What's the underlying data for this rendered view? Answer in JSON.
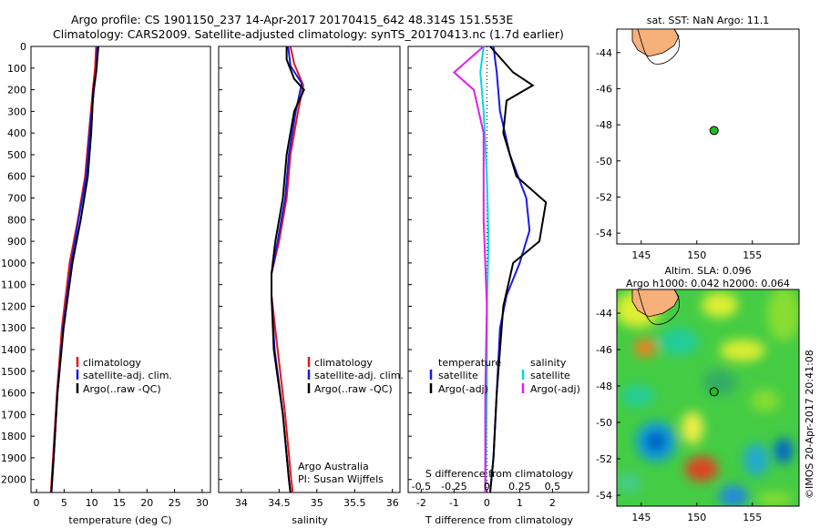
{
  "header": {
    "line1": "Argo profile: CS 1901150_237 14-Apr-2017 20170415_642 48.314S 151.553E",
    "line2": "Climatology: CARS2009. Satellite-adjusted climatology: synTS_20170413.nc (1.7d earlier)"
  },
  "colors": {
    "red": "#e8141c",
    "blue": "#1a1ae6",
    "black": "#000000",
    "cyan": "#00d8e0",
    "magenta": "#e01ee8",
    "land": "#f6b07a",
    "dot": "#22bb22"
  },
  "depth_axis": {
    "ticks": [
      0,
      100,
      200,
      300,
      400,
      500,
      600,
      700,
      800,
      900,
      1000,
      1100,
      1200,
      1300,
      1400,
      1500,
      1600,
      1700,
      1800,
      1900,
      2000
    ],
    "range": [
      0,
      2060
    ]
  },
  "chart_data": [
    {
      "type": "line",
      "id": "temperature",
      "xlabel": "temperature (deg C)",
      "ylabel": "depth",
      "xlim": [
        -1,
        31.5
      ],
      "xticks": [
        "0",
        "5",
        "10",
        "15",
        "20",
        "25",
        "30"
      ],
      "xtick_values": [
        0,
        5,
        10,
        15,
        20,
        25,
        30
      ],
      "legend": [
        "climatology",
        "satellite-adj. clim.",
        "Argo(..raw -QC)"
      ],
      "series": [
        {
          "name": "climatology",
          "color": "red",
          "points": [
            [
              10.8,
              0
            ],
            [
              10.6,
              100
            ],
            [
              10.2,
              200
            ],
            [
              9.5,
              400
            ],
            [
              8.8,
              600
            ],
            [
              7.5,
              800
            ],
            [
              6.0,
              1000
            ],
            [
              4.6,
              1300
            ],
            [
              3.7,
              1600
            ],
            [
              3.0,
              1900
            ],
            [
              2.6,
              2060
            ]
          ]
        },
        {
          "name": "satellite-adj. clim.",
          "color": "blue",
          "points": [
            [
              11.0,
              0
            ],
            [
              10.9,
              100
            ],
            [
              10.4,
              200
            ],
            [
              9.6,
              400
            ],
            [
              9.0,
              600
            ],
            [
              7.6,
              800
            ],
            [
              6.3,
              1000
            ],
            [
              4.8,
              1300
            ],
            [
              3.8,
              1600
            ],
            [
              3.1,
              1900
            ],
            [
              2.7,
              2060
            ]
          ]
        },
        {
          "name": "Argo(..raw -QC)",
          "color": "black",
          "points": [
            [
              11.2,
              0
            ],
            [
              10.8,
              120
            ],
            [
              10.3,
              200
            ],
            [
              9.9,
              400
            ],
            [
              9.3,
              600
            ],
            [
              8.0,
              800
            ],
            [
              6.5,
              1000
            ],
            [
              4.9,
              1300
            ],
            [
              3.8,
              1600
            ],
            [
              3.1,
              1900
            ],
            [
              2.7,
              2060
            ]
          ]
        }
      ]
    },
    {
      "type": "line",
      "id": "salinity",
      "xlabel": "salinity",
      "xlim": [
        33.7,
        36.1
      ],
      "xticks": [
        "34",
        "34.5",
        "35",
        "35.5",
        "36"
      ],
      "xtick_values": [
        34,
        34.5,
        35,
        35.5,
        36
      ],
      "legend": [
        "climatology",
        "satellite-adj. clim.",
        "Argo(..raw -QC)"
      ],
      "note": [
        "Argo Australia",
        "PI: Susan Wijffels"
      ],
      "series": [
        {
          "name": "climatology",
          "color": "red",
          "points": [
            [
              34.65,
              0
            ],
            [
              34.7,
              80
            ],
            [
              34.82,
              180
            ],
            [
              34.75,
              300
            ],
            [
              34.65,
              500
            ],
            [
              34.6,
              700
            ],
            [
              34.5,
              900
            ],
            [
              34.4,
              1050
            ],
            [
              34.4,
              1150
            ],
            [
              34.48,
              1400
            ],
            [
              34.58,
              1700
            ],
            [
              34.66,
              2000
            ],
            [
              34.68,
              2060
            ]
          ]
        },
        {
          "name": "satellite-adj. clim.",
          "color": "blue",
          "points": [
            [
              34.62,
              0
            ],
            [
              34.65,
              90
            ],
            [
              34.8,
              170
            ],
            [
              34.72,
              300
            ],
            [
              34.63,
              500
            ],
            [
              34.58,
              700
            ],
            [
              34.48,
              900
            ],
            [
              34.4,
              1050
            ],
            [
              34.4,
              1150
            ],
            [
              34.44,
              1400
            ],
            [
              34.55,
              1700
            ],
            [
              34.63,
              2000
            ],
            [
              34.65,
              2060
            ]
          ]
        },
        {
          "name": "Argo(..raw -QC)",
          "color": "black",
          "points": [
            [
              34.6,
              0
            ],
            [
              34.6,
              60
            ],
            [
              34.7,
              150
            ],
            [
              34.83,
              200
            ],
            [
              34.7,
              300
            ],
            [
              34.6,
              500
            ],
            [
              34.55,
              700
            ],
            [
              34.45,
              900
            ],
            [
              34.4,
              1050
            ],
            [
              34.4,
              1150
            ],
            [
              34.43,
              1400
            ],
            [
              34.55,
              1700
            ],
            [
              34.63,
              2000
            ],
            [
              34.65,
              2060
            ]
          ]
        }
      ]
    },
    {
      "type": "line",
      "id": "differences",
      "xlabel": "T difference from climatology",
      "xlabel_top": "S difference from climatology",
      "xlim": [
        -2.4,
        3.1
      ],
      "xticks": [
        "-2",
        "-1",
        "0",
        "1",
        "2"
      ],
      "xtick_values": [
        -2,
        -1,
        0,
        1,
        2
      ],
      "sticks": [
        "-0.5",
        "-0.25",
        "0",
        "0.25",
        "0.5"
      ],
      "legend_t": [
        "temperature",
        "satellite",
        "Argo(-adj)"
      ],
      "legend_s": [
        "salinity",
        "satellite",
        "Argo(-adj)"
      ],
      "series": [
        {
          "name": "T satellite",
          "color": "blue",
          "points": [
            [
              0.2,
              0
            ],
            [
              0.3,
              120
            ],
            [
              0.4,
              300
            ],
            [
              0.7,
              500
            ],
            [
              1.2,
              700
            ],
            [
              1.3,
              850
            ],
            [
              1.0,
              1000
            ],
            [
              0.6,
              1150
            ],
            [
              0.4,
              1300
            ],
            [
              0.3,
              1600
            ],
            [
              0.2,
              1900
            ],
            [
              0.1,
              2060
            ]
          ]
        },
        {
          "name": "T Argo(-adj)",
          "color": "black",
          "points": [
            [
              0.1,
              0
            ],
            [
              0.8,
              120
            ],
            [
              1.4,
              180
            ],
            [
              0.6,
              250
            ],
            [
              0.5,
              400
            ],
            [
              0.9,
              600
            ],
            [
              1.8,
              720
            ],
            [
              1.6,
              900
            ],
            [
              0.8,
              1000
            ],
            [
              0.5,
              1200
            ],
            [
              0.3,
              1600
            ],
            [
              0.2,
              1900
            ],
            [
              0.1,
              2060
            ]
          ]
        },
        {
          "name": "S satellite",
          "color": "cyan",
          "points": [
            [
              -0.1,
              0
            ],
            [
              -0.2,
              120
            ],
            [
              -0.1,
              300
            ],
            [
              0.0,
              600
            ],
            [
              0.05,
              900
            ],
            [
              0.0,
              1200
            ],
            [
              0.0,
              1600
            ],
            [
              -0.05,
              2060
            ]
          ]
        },
        {
          "name": "S Argo(-adj)",
          "color": "magenta",
          "points": [
            [
              -0.1,
              0
            ],
            [
              -1.0,
              120
            ],
            [
              -0.4,
              200
            ],
            [
              -0.1,
              400
            ],
            [
              -0.1,
              800
            ],
            [
              0.0,
              1200
            ],
            [
              -0.05,
              1600
            ],
            [
              -0.05,
              2060
            ]
          ]
        }
      ]
    }
  ],
  "map_sst": {
    "title": "sat. SST: NaN Argo: 11.1",
    "xticks": [
      "145",
      "150",
      "155"
    ],
    "xtick_values": [
      145,
      150,
      155
    ],
    "yticks": [
      "-44",
      "-46",
      "-48",
      "-50",
      "-52",
      "-54"
    ],
    "ytick_values": [
      -44,
      -46,
      -48,
      -50,
      -52,
      -54
    ],
    "float": {
      "lon": 151.553,
      "lat": -48.314
    }
  },
  "map_sla": {
    "title1": "Altim. SLA: 0.096",
    "title2": "Argo h1000: 0.042 h2000: 0.064",
    "xticks": [
      "145",
      "150",
      "155"
    ],
    "xtick_values": [
      145,
      150,
      155
    ],
    "yticks": [
      "-44",
      "-46",
      "-48",
      "-50",
      "-52",
      "-54"
    ],
    "ytick_values": [
      -44,
      -46,
      -48,
      -50,
      -52,
      -54
    ],
    "float": {
      "lon": 151.553,
      "lat": -48.314
    }
  },
  "footer": "©IMOS 20-Apr-2017 20:41:08"
}
